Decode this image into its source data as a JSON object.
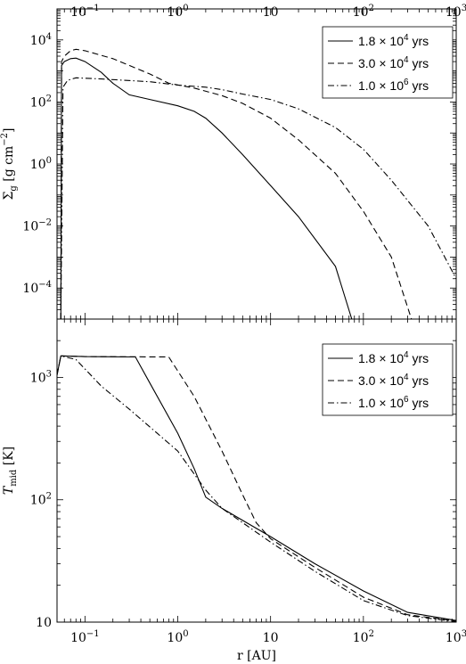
{
  "chart_data": [
    {
      "type": "line",
      "id": "sigma",
      "xscale": "log",
      "yscale": "log",
      "xlim": [
        0.05,
        1000
      ],
      "ylim": [
        1e-05,
        100000
      ],
      "xticks": [
        {
          "v": 0.1,
          "label": "10^-1"
        },
        {
          "v": 1,
          "label": "10^0"
        },
        {
          "v": 10,
          "label": "10"
        },
        {
          "v": 100,
          "label": "10^2"
        },
        {
          "v": 1000,
          "label": "10^3"
        }
      ],
      "yticks": [
        {
          "v": 0.0001,
          "label": "10^-4"
        },
        {
          "v": 0.01,
          "label": "10^-2"
        },
        {
          "v": 1,
          "label": "10^0"
        },
        {
          "v": 100,
          "label": "10^2"
        },
        {
          "v": 10000,
          "label": "10^4"
        }
      ],
      "ylabel": "Σ_g [g cm^-2]",
      "xlabel": "",
      "legend": "top-right",
      "series": [
        {
          "name": "1.8 × 10^4 yrs",
          "dash": "solid",
          "points": [
            [
              0.055,
              1e-05
            ],
            [
              0.056,
              1500
            ],
            [
              0.06,
              2000
            ],
            [
              0.07,
              2500
            ],
            [
              0.08,
              2600
            ],
            [
              0.1,
              2000
            ],
            [
              0.15,
              900
            ],
            [
              0.2,
              400
            ],
            [
              0.3,
              170
            ],
            [
              0.5,
              120
            ],
            [
              1,
              75
            ],
            [
              1.5,
              50
            ],
            [
              2,
              30
            ],
            [
              3,
              10
            ],
            [
              5,
              2
            ],
            [
              10,
              0.2
            ],
            [
              20,
              0.02
            ],
            [
              50,
              0.0005
            ],
            [
              75,
              1e-05
            ]
          ]
        },
        {
          "name": "3.0 × 10^4 yrs",
          "dash": "dashed",
          "points": [
            [
              0.055,
              1e-05
            ],
            [
              0.056,
              2000
            ],
            [
              0.06,
              3000
            ],
            [
              0.07,
              4500
            ],
            [
              0.08,
              5000
            ],
            [
              0.1,
              4500
            ],
            [
              0.2,
              2500
            ],
            [
              0.5,
              800
            ],
            [
              0.8,
              400
            ],
            [
              1.5,
              280
            ],
            [
              3,
              160
            ],
            [
              5,
              90
            ],
            [
              10,
              30
            ],
            [
              20,
              6
            ],
            [
              50,
              0.5
            ],
            [
              100,
              0.03
            ],
            [
              200,
              0.001
            ],
            [
              330,
              1e-05
            ]
          ]
        },
        {
          "name": "1.0 × 10^6 yrs",
          "dash": "dashdot",
          "points": [
            [
              0.055,
              1e-05
            ],
            [
              0.058,
              300
            ],
            [
              0.065,
              500
            ],
            [
              0.08,
              600
            ],
            [
              0.15,
              550
            ],
            [
              0.5,
              450
            ],
            [
              1,
              350
            ],
            [
              2,
              300
            ],
            [
              3,
              250
            ],
            [
              5,
              180
            ],
            [
              10,
              120
            ],
            [
              20,
              60
            ],
            [
              50,
              15
            ],
            [
              100,
              3
            ],
            [
              200,
              0.3
            ],
            [
              500,
              0.01
            ],
            [
              1000,
              0.0002
            ]
          ]
        }
      ]
    },
    {
      "type": "line",
      "id": "tmid",
      "xscale": "log",
      "yscale": "log",
      "xlim": [
        0.05,
        1000
      ],
      "ylim": [
        10,
        3000
      ],
      "xticks": [
        {
          "v": 0.1,
          "label": "10^-1"
        },
        {
          "v": 1,
          "label": "10^0"
        },
        {
          "v": 10,
          "label": "10"
        },
        {
          "v": 100,
          "label": "10^2"
        },
        {
          "v": 1000,
          "label": "10^3"
        }
      ],
      "yticks": [
        {
          "v": 10,
          "label": "10"
        },
        {
          "v": 100,
          "label": "10^2"
        },
        {
          "v": 1000,
          "label": "10^3"
        }
      ],
      "ylabel": "T_mid [K]",
      "xlabel": "r [AU]",
      "legend": "top-right",
      "series": [
        {
          "name": "1.8 × 10^4 yrs",
          "dash": "solid",
          "points": [
            [
              0.05,
              1050
            ],
            [
              0.055,
              1500
            ],
            [
              0.1,
              1480
            ],
            [
              0.35,
              1470
            ],
            [
              0.5,
              900
            ],
            [
              1,
              350
            ],
            [
              1.5,
              180
            ],
            [
              2,
              105
            ],
            [
              3,
              85
            ],
            [
              10,
              50
            ],
            [
              30,
              30
            ],
            [
              100,
              18
            ],
            [
              300,
              12
            ],
            [
              1000,
              10.3
            ]
          ]
        },
        {
          "name": "3.0 × 10^4 yrs",
          "dash": "dashed",
          "points": [
            [
              0.05,
              1050
            ],
            [
              0.055,
              1500
            ],
            [
              0.1,
              1480
            ],
            [
              0.8,
              1470
            ],
            [
              1.5,
              700
            ],
            [
              3,
              250
            ],
            [
              5,
              110
            ],
            [
              7,
              65
            ],
            [
              10,
              48
            ],
            [
              30,
              28
            ],
            [
              100,
              16
            ],
            [
              300,
              11.5
            ],
            [
              1000,
              10.2
            ]
          ]
        },
        {
          "name": "1.0 × 10^6 yrs",
          "dash": "dashdot",
          "points": [
            [
              0.05,
              1050
            ],
            [
              0.055,
              1500
            ],
            [
              0.08,
              1400
            ],
            [
              0.15,
              850
            ],
            [
              0.3,
              550
            ],
            [
              0.6,
              350
            ],
            [
              1,
              250
            ],
            [
              2,
              120
            ],
            [
              3,
              85
            ],
            [
              10,
              45
            ],
            [
              30,
              26
            ],
            [
              100,
              15
            ],
            [
              300,
              11.3
            ],
            [
              1000,
              10.1
            ]
          ]
        }
      ]
    }
  ]
}
